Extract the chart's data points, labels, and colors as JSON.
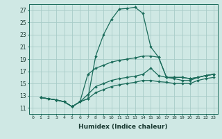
{
  "xlabel": "Humidex (Indice chaleur)",
  "bg_color": "#cfe8e4",
  "grid_color": "#a8ccc8",
  "line_color": "#1a6b5a",
  "xlim": [
    -0.5,
    23.5
  ],
  "ylim": [
    10,
    28
  ],
  "xticks": [
    0,
    1,
    2,
    3,
    4,
    5,
    6,
    7,
    8,
    9,
    10,
    11,
    12,
    13,
    14,
    15,
    16,
    17,
    18,
    19,
    20,
    21,
    22,
    23
  ],
  "yticks": [
    11,
    13,
    15,
    17,
    19,
    21,
    23,
    25,
    27
  ],
  "lines": [
    {
      "x": [
        1,
        2,
        3,
        4,
        5,
        6,
        7,
        8,
        9,
        10,
        11,
        12,
        13,
        14,
        15,
        16,
        17,
        18,
        19,
        20,
        21,
        22,
        23
      ],
      "y": [
        12.7,
        12.5,
        12.3,
        12.0,
        11.2,
        12.0,
        12.5,
        19.5,
        23.0,
        25.5,
        27.2,
        27.3,
        27.5,
        26.5,
        21.0,
        19.3,
        16.0,
        16.0,
        16.0,
        15.8,
        16.0,
        16.3,
        16.5
      ]
    },
    {
      "x": [
        1,
        2,
        3,
        4,
        5,
        6,
        7,
        8,
        9,
        10,
        11,
        12,
        13,
        14,
        15,
        16,
        17,
        18,
        19,
        20,
        21,
        22,
        23
      ],
      "y": [
        12.7,
        12.5,
        12.3,
        12.0,
        11.2,
        12.0,
        16.5,
        17.5,
        18.0,
        18.5,
        18.8,
        19.0,
        19.2,
        19.5,
        19.5,
        19.3,
        16.0,
        16.0,
        16.0,
        15.8,
        16.0,
        16.3,
        16.5
      ]
    },
    {
      "x": [
        1,
        2,
        3,
        4,
        5,
        6,
        7,
        8,
        9,
        10,
        11,
        12,
        13,
        14,
        15,
        16,
        17,
        18,
        19,
        20,
        21,
        22,
        23
      ],
      "y": [
        12.7,
        12.5,
        12.3,
        12.0,
        11.2,
        12.0,
        13.2,
        14.5,
        15.0,
        15.5,
        15.8,
        16.0,
        16.2,
        16.5,
        17.5,
        16.3,
        16.0,
        15.8,
        15.5,
        15.5,
        16.0,
        16.3,
        16.5
      ]
    },
    {
      "x": [
        1,
        2,
        3,
        4,
        5,
        6,
        7,
        8,
        9,
        10,
        11,
        12,
        13,
        14,
        15,
        16,
        17,
        18,
        19,
        20,
        21,
        22,
        23
      ],
      "y": [
        12.7,
        12.5,
        12.3,
        12.0,
        11.2,
        12.0,
        12.5,
        13.5,
        14.0,
        14.5,
        14.8,
        15.0,
        15.2,
        15.5,
        15.5,
        15.3,
        15.2,
        15.0,
        15.0,
        15.0,
        15.5,
        15.8,
        16.0
      ]
    }
  ]
}
